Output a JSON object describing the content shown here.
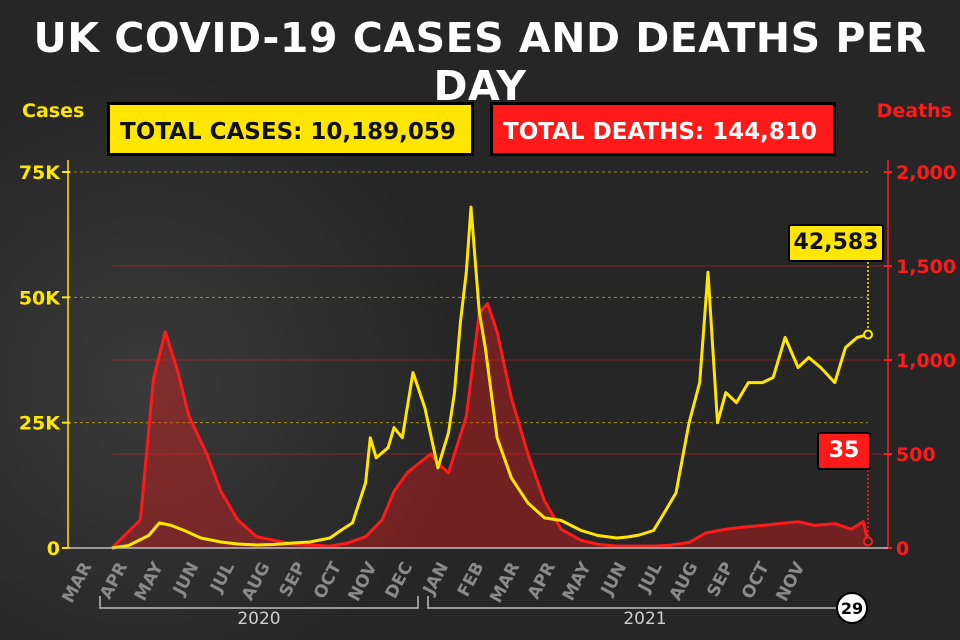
{
  "title": "UK COVID-19 CASES AND DEATHS PER DAY",
  "badges": {
    "total_cases": "TOTAL CASES: 10,189,059",
    "total_deaths": "TOTAL DEATHS: 144,810"
  },
  "callouts": {
    "latest_cases": "42,583",
    "latest_deaths": "35",
    "latest_day": "29"
  },
  "colors": {
    "cases": "#ffe600",
    "deaths": "#ff1a1a",
    "background": "#262626"
  },
  "chart_data": {
    "type": "line",
    "title": "UK COVID-19 CASES AND DEATHS PER DAY",
    "ylabel_left": "Cases",
    "ylabel_right": "Deaths",
    "left_ticks": [
      "0",
      "25K",
      "50K",
      "75K"
    ],
    "right_ticks": [
      "0",
      "500",
      "1,000",
      "1,500",
      "2,000"
    ],
    "ylim_left": [
      0,
      75000
    ],
    "ylim_right": [
      0,
      2000
    ],
    "grid": true,
    "x_months": [
      "MAR",
      "APR",
      "MAY",
      "JUN",
      "JUL",
      "AUG",
      "SEP",
      "OCT",
      "NOV",
      "DEC",
      "JAN",
      "FEB",
      "MAR",
      "APR",
      "MAY",
      "JUN",
      "JUL",
      "AUG",
      "SEP",
      "OCT",
      "NOV"
    ],
    "x_years": [
      "2020",
      "2021"
    ],
    "series": [
      {
        "name": "Cases",
        "axis": "left",
        "x": [
          "2020-03-01",
          "2020-03-15",
          "2020-04-01",
          "2020-04-10",
          "2020-04-20",
          "2020-05-01",
          "2020-05-15",
          "2020-06-01",
          "2020-06-15",
          "2020-07-01",
          "2020-07-15",
          "2020-08-01",
          "2020-08-15",
          "2020-09-01",
          "2020-09-10",
          "2020-09-20",
          "2020-10-01",
          "2020-10-05",
          "2020-10-10",
          "2020-10-20",
          "2020-10-25",
          "2020-11-01",
          "2020-11-10",
          "2020-11-20",
          "2020-12-01",
          "2020-12-10",
          "2020-12-15",
          "2020-12-20",
          "2020-12-25",
          "2020-12-29",
          "2021-01-05",
          "2021-01-10",
          "2021-01-20",
          "2021-02-01",
          "2021-02-15",
          "2021-03-01",
          "2021-03-15",
          "2021-04-01",
          "2021-04-15",
          "2021-05-01",
          "2021-05-10",
          "2021-05-20",
          "2021-06-01",
          "2021-06-10",
          "2021-06-20",
          "2021-07-01",
          "2021-07-10",
          "2021-07-17",
          "2021-07-25",
          "2021-08-01",
          "2021-08-10",
          "2021-08-20",
          "2021-09-01",
          "2021-09-10",
          "2021-09-20",
          "2021-10-01",
          "2021-10-10",
          "2021-10-20",
          "2021-11-01",
          "2021-11-10",
          "2021-11-20",
          "2021-11-29"
        ],
        "values": [
          0,
          500,
          2500,
          5000,
          4500,
          3500,
          2000,
          1200,
          800,
          600,
          700,
          1000,
          1200,
          2000,
          3500,
          5000,
          13000,
          22000,
          18000,
          20000,
          24000,
          22000,
          35000,
          28000,
          16000,
          23000,
          31000,
          45000,
          55000,
          68000,
          47000,
          40000,
          22000,
          14000,
          9000,
          6000,
          5500,
          3500,
          2500,
          2000,
          2200,
          2600,
          3500,
          7000,
          11000,
          25000,
          33000,
          55000,
          25000,
          31000,
          29000,
          33000,
          33000,
          34000,
          42000,
          36000,
          38000,
          36000,
          33000,
          40000,
          42000,
          42583
        ]
      },
      {
        "name": "Deaths",
        "axis": "right",
        "x": [
          "2020-03-01",
          "2020-03-25",
          "2020-04-05",
          "2020-04-15",
          "2020-04-25",
          "2020-05-05",
          "2020-05-20",
          "2020-06-01",
          "2020-06-15",
          "2020-07-01",
          "2020-08-01",
          "2020-09-01",
          "2020-09-15",
          "2020-10-01",
          "2020-10-15",
          "2020-10-25",
          "2020-11-05",
          "2020-11-15",
          "2020-11-25",
          "2020-12-01",
          "2020-12-10",
          "2020-12-20",
          "2020-12-25",
          "2021-01-05",
          "2021-01-12",
          "2021-01-20",
          "2021-02-01",
          "2021-02-15",
          "2021-03-01",
          "2021-03-15",
          "2021-04-01",
          "2021-04-15",
          "2021-05-01",
          "2021-05-15",
          "2021-06-01",
          "2021-06-15",
          "2021-07-01",
          "2021-07-15",
          "2021-08-01",
          "2021-08-15",
          "2021-09-01",
          "2021-09-15",
          "2021-10-01",
          "2021-10-15",
          "2021-11-01",
          "2021-11-15",
          "2021-11-25",
          "2021-11-29"
        ],
        "values": [
          0,
          150,
          900,
          1150,
          950,
          700,
          500,
          300,
          150,
          60,
          20,
          10,
          25,
          60,
          150,
          300,
          400,
          450,
          500,
          450,
          400,
          600,
          700,
          1250,
          1300,
          1150,
          800,
          500,
          250,
          100,
          40,
          20,
          10,
          10,
          10,
          15,
          30,
          80,
          100,
          110,
          120,
          130,
          140,
          120,
          130,
          100,
          140,
          35
        ]
      }
    ]
  }
}
